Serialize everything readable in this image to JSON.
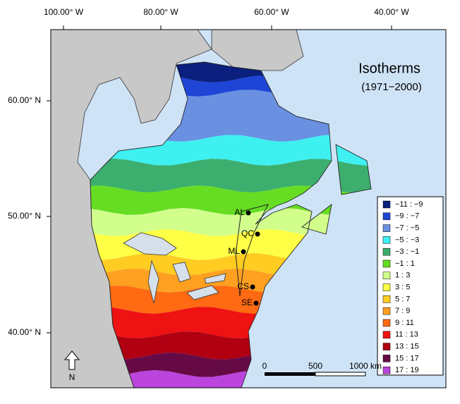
{
  "axes": {
    "top": [
      "100.00° W",
      "80.00° W",
      "60.00° W",
      "40.00° W"
    ],
    "left": [
      "60.00° N",
      "50.00° N",
      "40.00° N"
    ]
  },
  "title": "Isotherms",
  "subtitle": "(1971−2000)",
  "legend": [
    {
      "label": "−11 : −9",
      "color": "#0b1f7e"
    },
    {
      "label": "−9 : −7",
      "color": "#1f45d6"
    },
    {
      "label": "−7 : −5",
      "color": "#6a90e2"
    },
    {
      "label": "−5 : −3",
      "color": "#3ff0f0"
    },
    {
      "label": "−3 : −1",
      "color": "#3caf6e"
    },
    {
      "label": "−1 : 1",
      "color": "#66dd22"
    },
    {
      "label": "1 : 3",
      "color": "#d2ff8c"
    },
    {
      "label": "3 : 5",
      "color": "#ffff46"
    },
    {
      "label": "5 : 7",
      "color": "#ffcc22"
    },
    {
      "label": "7 : 9",
      "color": "#ffa020"
    },
    {
      "label": "9 : 11",
      "color": "#ff6a12"
    },
    {
      "label": "11 : 13",
      "color": "#ee1212"
    },
    {
      "label": "13 : 15",
      "color": "#b00012"
    },
    {
      "label": "15 : 17",
      "color": "#660a46"
    },
    {
      "label": "17 : 19",
      "color": "#bb44dd"
    }
  ],
  "stations": [
    "AL",
    "QC",
    "ML",
    "CS",
    "SE"
  ],
  "scale": [
    "0",
    "500",
    "1000 km"
  ],
  "north": "N"
}
